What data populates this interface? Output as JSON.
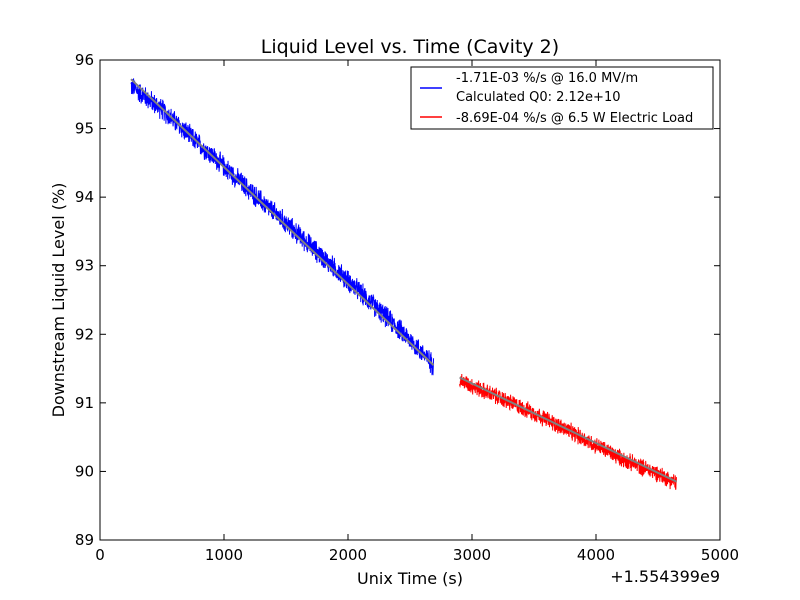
{
  "chart_data": {
    "type": "line",
    "title": "Liquid Level vs. Time (Cavity 2)",
    "xlabel": "Unix Time (s)",
    "ylabel": "Downstream Liquid Level (%)",
    "x_offset_label": "+1.554399e9",
    "xlim": [
      0,
      5000
    ],
    "ylim": [
      89,
      96
    ],
    "xticks": [
      0,
      1000,
      2000,
      3000,
      4000,
      5000
    ],
    "yticks": [
      89,
      90,
      91,
      92,
      93,
      94,
      95,
      96
    ],
    "grid": false,
    "legend_position": "top-right",
    "colors": {
      "series_1": "#0000ff",
      "series_2": "#ff0000",
      "fit": "#808080"
    },
    "series": [
      {
        "name": "-1.71E-03 %/s @ 16.0 MV/m\nCalculated Q0: 2.12e+10",
        "color": "#0000ff",
        "x_range": [
          250,
          2690
        ],
        "noise_amplitude": 0.15,
        "points": [
          [
            250,
            95.62
          ],
          [
            500,
            95.28
          ],
          [
            750,
            94.85
          ],
          [
            1000,
            94.45
          ],
          [
            1250,
            94.02
          ],
          [
            1500,
            93.62
          ],
          [
            1750,
            93.2
          ],
          [
            2000,
            92.78
          ],
          [
            2250,
            92.35
          ],
          [
            2500,
            91.92
          ],
          [
            2690,
            91.55
          ]
        ],
        "fit": [
          [
            250,
            95.72
          ],
          [
            2690,
            91.55
          ]
        ]
      },
      {
        "name": "-8.69E-04 %/s @ 6.5 W Electric Load",
        "color": "#ff0000",
        "x_range": [
          2900,
          4650
        ],
        "noise_amplitude": 0.12,
        "points": [
          [
            2900,
            91.33
          ],
          [
            3250,
            91.05
          ],
          [
            3500,
            90.85
          ],
          [
            3750,
            90.62
          ],
          [
            4000,
            90.38
          ],
          [
            4250,
            90.15
          ],
          [
            4500,
            89.97
          ],
          [
            4650,
            89.83
          ]
        ],
        "fit": [
          [
            2900,
            91.37
          ],
          [
            4650,
            89.85
          ]
        ]
      }
    ]
  }
}
